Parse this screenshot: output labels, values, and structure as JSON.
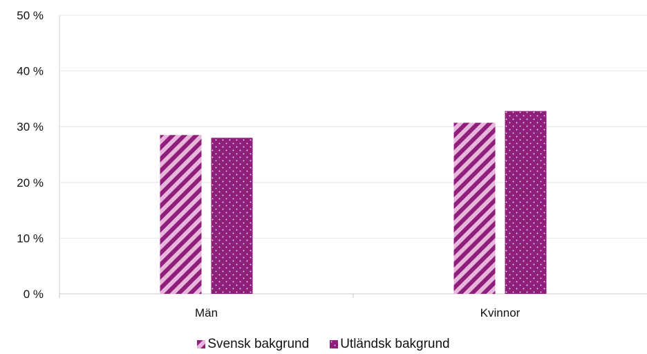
{
  "chart_data": {
    "type": "bar",
    "categories": [
      "Män",
      "Kvinnor"
    ],
    "series": [
      {
        "name": "Svensk bakgrund",
        "values": [
          28.5,
          30.7
        ],
        "color": "#8e1f7a",
        "pattern": "diagonal-stripes"
      },
      {
        "name": "Utländsk bakgrund",
        "values": [
          28.0,
          32.8
        ],
        "color": "#8e1f7a",
        "pattern": "dots"
      }
    ],
    "y_ticks": [
      "0 %",
      "10 %",
      "20 %",
      "30 %",
      "40 %",
      "50 %"
    ],
    "ylim": [
      0,
      50
    ],
    "grid": true,
    "legend_position": "bottom",
    "title": "",
    "xlabel": "",
    "ylabel": ""
  }
}
